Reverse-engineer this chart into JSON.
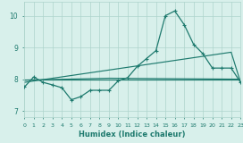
{
  "xlabel": "Humidex (Indice chaleur)",
  "bg_color": "#d8f0eb",
  "grid_color": "#aed4cc",
  "line_color": "#1e7a6e",
  "x_min": 0,
  "x_max": 23,
  "y_min": 6.8,
  "y_max": 10.45,
  "yticks": [
    7,
    8,
    9,
    10
  ],
  "xticks": [
    0,
    1,
    2,
    3,
    4,
    5,
    6,
    7,
    8,
    9,
    10,
    11,
    12,
    13,
    14,
    15,
    16,
    17,
    18,
    19,
    20,
    21,
    22,
    23
  ],
  "series_main": {
    "x": [
      0,
      1,
      2,
      3,
      4,
      5,
      6,
      7,
      8,
      9,
      10,
      11,
      12,
      13,
      14,
      15,
      16,
      17,
      18,
      19,
      20,
      21,
      22,
      23
    ],
    "y": [
      7.75,
      8.07,
      7.9,
      7.82,
      7.73,
      7.35,
      7.45,
      7.65,
      7.65,
      7.65,
      7.95,
      8.05,
      8.4,
      8.65,
      8.9,
      10.0,
      10.15,
      9.72,
      9.1,
      8.8,
      8.35,
      8.35,
      8.35,
      7.9
    ]
  },
  "series_rise": {
    "x": [
      0,
      22,
      23
    ],
    "y": [
      7.9,
      8.85,
      7.9
    ]
  },
  "series_flat1": {
    "x": [
      0,
      9,
      23
    ],
    "y": [
      7.97,
      8.03,
      8.0
    ]
  },
  "series_flat2": {
    "x": [
      0,
      9,
      23
    ],
    "y": [
      8.0,
      8.0,
      8.0
    ]
  }
}
